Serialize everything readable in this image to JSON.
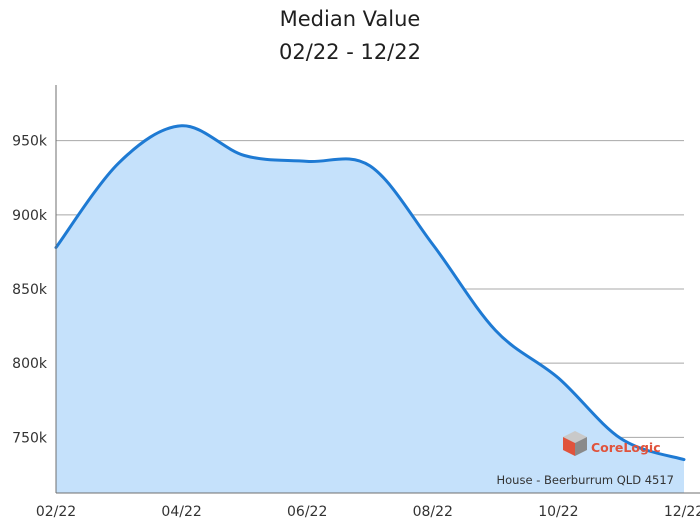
{
  "chart_data": {
    "type": "area",
    "title": "Median Value",
    "subtitle": "02/22 - 12/22",
    "x": [
      "02/22",
      "03/22",
      "04/22",
      "05/22",
      "06/22",
      "07/22",
      "08/22",
      "09/22",
      "10/22",
      "11/22",
      "12/22"
    ],
    "xticks": [
      "02/22",
      "04/22",
      "06/22",
      "08/22",
      "10/22",
      "12/22"
    ],
    "series": [
      {
        "values": [
          878000,
          935000,
          960000,
          940000,
          936000,
          933000,
          880000,
          822000,
          790000,
          749000,
          735000
        ]
      }
    ],
    "yticks": [
      750000,
      800000,
      850000,
      900000,
      950000
    ],
    "ytick_labels": [
      "750k",
      "800k",
      "850k",
      "900k",
      "950k"
    ],
    "ylim": [
      712500,
      987500
    ],
    "grid": true,
    "line_color": "#1e7ad3",
    "fill_color": "#c5e1fb",
    "grid_color": "#a8a8a8",
    "caption": "House - Beerburrum QLD 4517",
    "watermark": {
      "text": "CoreLogic",
      "icon": "corelogic-cube-logo",
      "colors": [
        "#c9c9c9",
        "#e0533c",
        "#8a8a8a"
      ]
    }
  }
}
